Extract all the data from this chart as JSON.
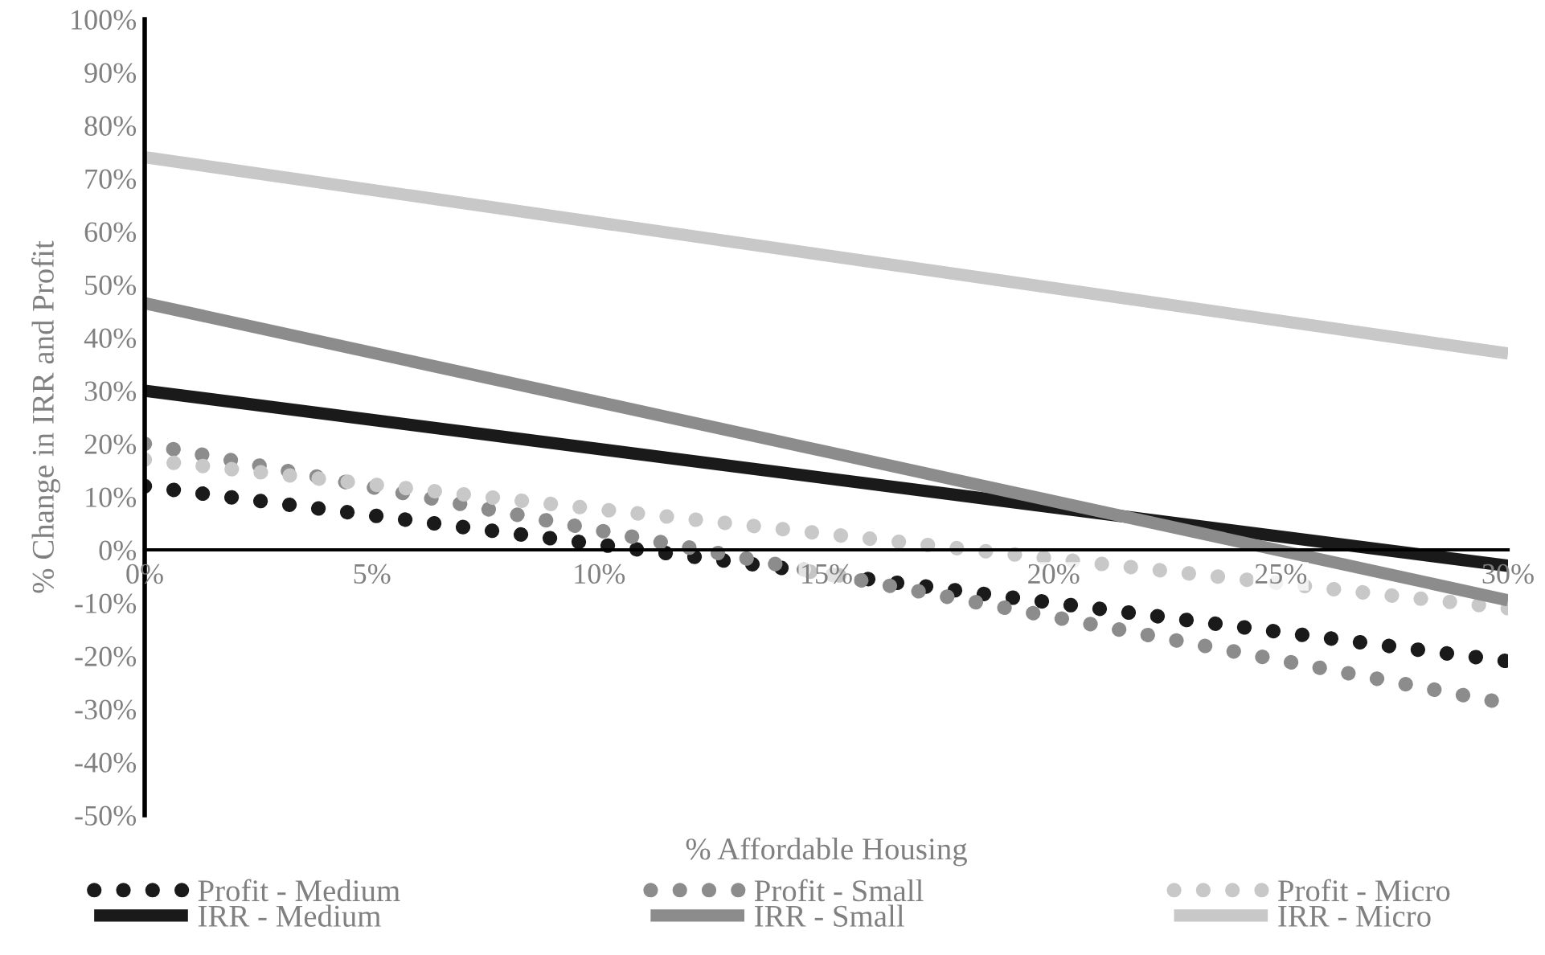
{
  "chart_data": {
    "type": "line",
    "xlabel": "% Affordable Housing",
    "ylabel": "% Change in IRR and Profit",
    "x": [
      0,
      30
    ],
    "series": [
      {
        "name": "Profit - Medium",
        "color": "#1a1a1a",
        "line_style": "dotted",
        "values": [
          12,
          -21
        ]
      },
      {
        "name": "Profit - Small",
        "color": "#8c8c8c",
        "line_style": "dotted",
        "values": [
          20,
          -29
        ]
      },
      {
        "name": "Profit - Micro",
        "color": "#c8c8c8",
        "line_style": "dotted",
        "values": [
          17,
          -11
        ]
      },
      {
        "name": "IRR - Medium",
        "color": "#1a1a1a",
        "line_style": "solid",
        "values": [
          30,
          -3
        ]
      },
      {
        "name": "IRR - Small",
        "color": "#8c8c8c",
        "line_style": "solid",
        "values": [
          46.5,
          -9.5
        ]
      },
      {
        "name": "IRR - Micro",
        "color": "#c8c8c8",
        "line_style": "solid",
        "values": [
          74,
          37
        ]
      }
    ],
    "xlim": [
      0,
      30
    ],
    "xticks": [
      {
        "value": 0,
        "label": "0%"
      },
      {
        "value": 5,
        "label": "5%"
      },
      {
        "value": 10,
        "label": "10%"
      },
      {
        "value": 15,
        "label": "15%"
      },
      {
        "value": 20,
        "label": "20%"
      },
      {
        "value": 25,
        "label": "25%"
      },
      {
        "value": 30,
        "label": "30%"
      }
    ],
    "ylim": [
      -50,
      100
    ],
    "yticks": [
      {
        "value": -50,
        "label": "-50%"
      },
      {
        "value": -40,
        "label": "-40%"
      },
      {
        "value": -30,
        "label": "-30%"
      },
      {
        "value": -20,
        "label": "-20%"
      },
      {
        "value": -10,
        "label": "-10%"
      },
      {
        "value": 0,
        "label": "0%"
      },
      {
        "value": 10,
        "label": "10%"
      },
      {
        "value": 20,
        "label": "20%"
      },
      {
        "value": 30,
        "label": "30%"
      },
      {
        "value": 40,
        "label": "40%"
      },
      {
        "value": 50,
        "label": "50%"
      },
      {
        "value": 60,
        "label": "60%"
      },
      {
        "value": 70,
        "label": "70%"
      },
      {
        "value": 80,
        "label": "80%"
      },
      {
        "value": 90,
        "label": "90%"
      },
      {
        "value": 100,
        "label": "100%"
      }
    ],
    "grid": false,
    "legend": "bottom"
  }
}
